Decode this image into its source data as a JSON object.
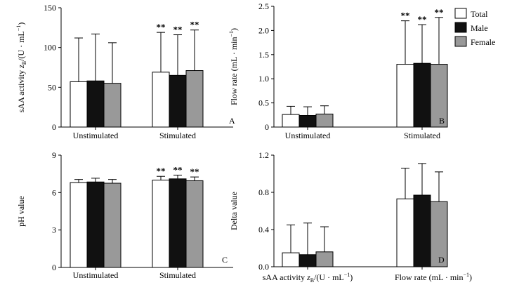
{
  "chart_data": [
    {
      "panel": "A",
      "type": "bar",
      "ylabel_prefix": "sAA activity ",
      "ylabel_var": "z",
      "ylabel_sub": "B",
      "ylabel_suffix": "/(U · mL",
      "ylabel_sup": "−1",
      "ylabel_end": ")",
      "ylim": [
        0,
        150
      ],
      "yticks": [
        "0",
        "50",
        "100",
        "150"
      ],
      "categories": [
        "Unstimulated",
        "Stimulated"
      ],
      "series": [
        {
          "name": "Total",
          "values": [
            57,
            69
          ],
          "errors": [
            55,
            50
          ]
        },
        {
          "name": "Male",
          "values": [
            58,
            65
          ],
          "errors": [
            59,
            51
          ]
        },
        {
          "name": "Female",
          "values": [
            55,
            71
          ],
          "errors": [
            51,
            51
          ]
        }
      ],
      "significance": [
        "",
        "**"
      ]
    },
    {
      "panel": "B",
      "type": "bar",
      "ylabel_prefix": "Flow rate (mL · min",
      "ylabel_sup": "−1",
      "ylabel_end": ")",
      "ylim": [
        0,
        2.5
      ],
      "yticks": [
        "0",
        "0.5",
        "1.0",
        "1.5",
        "2.0",
        "2.5"
      ],
      "categories": [
        "Unstimulated",
        "Stimulated"
      ],
      "series": [
        {
          "name": "Total",
          "values": [
            0.26,
            1.3
          ],
          "errors": [
            0.17,
            0.9
          ]
        },
        {
          "name": "Male",
          "values": [
            0.24,
            1.32
          ],
          "errors": [
            0.18,
            0.8
          ]
        },
        {
          "name": "Female",
          "values": [
            0.27,
            1.3
          ],
          "errors": [
            0.17,
            0.97
          ]
        }
      ],
      "significance": [
        "",
        "**"
      ]
    },
    {
      "panel": "C",
      "type": "bar",
      "ylabel_prefix": "pH value",
      "ylim": [
        0,
        9
      ],
      "yticks": [
        "0",
        "3",
        "6",
        "9"
      ],
      "categories": [
        "Unstimulated",
        "Stimulated"
      ],
      "series": [
        {
          "name": "Total",
          "values": [
            6.8,
            7.0
          ],
          "errors": [
            0.25,
            0.3
          ]
        },
        {
          "name": "Male",
          "values": [
            6.85,
            7.1
          ],
          "errors": [
            0.3,
            0.3
          ]
        },
        {
          "name": "Female",
          "values": [
            6.75,
            6.95
          ],
          "errors": [
            0.3,
            0.3
          ]
        }
      ],
      "significance": [
        "",
        "**"
      ]
    },
    {
      "panel": "D",
      "type": "bar",
      "ylabel_prefix": "Delta value",
      "ylim": [
        0,
        1.2
      ],
      "yticks": [
        "0.0",
        "0.4",
        "0.8",
        "1.2"
      ],
      "categories": [
        "sAA activity z_B/(U · mL^−1)",
        "Flow rate (mL · min^−1)"
      ],
      "series": [
        {
          "name": "Total",
          "values": [
            0.15,
            0.73
          ],
          "errors": [
            0.3,
            0.33
          ]
        },
        {
          "name": "Male",
          "values": [
            0.13,
            0.77
          ],
          "errors": [
            0.34,
            0.34
          ]
        },
        {
          "name": "Female",
          "values": [
            0.16,
            0.7
          ],
          "errors": [
            0.27,
            0.32
          ]
        }
      ],
      "significance": [
        "",
        ""
      ]
    }
  ],
  "legend": {
    "entries": [
      "Total",
      "Male",
      "Female"
    ],
    "placement": "top-right of panel B"
  },
  "colors": {
    "Total": "#ffffff",
    "Male": "#111111",
    "Female": "#999999",
    "stroke": "#000000"
  },
  "d_categories": {
    "c1_prefix": "sAA activity ",
    "c1_var": "z",
    "c1_sub": "B",
    "c1_mid": "/(U · mL",
    "c1_sup": "−1",
    "c1_end": ")",
    "c2_prefix": "Flow rate (mL · min",
    "c2_sup": "−1",
    "c2_end": ")"
  }
}
